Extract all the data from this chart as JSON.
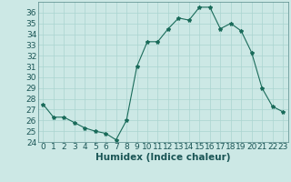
{
  "x": [
    0,
    1,
    2,
    3,
    4,
    5,
    6,
    7,
    8,
    9,
    10,
    11,
    12,
    13,
    14,
    15,
    16,
    17,
    18,
    19,
    20,
    21,
    22,
    23
  ],
  "y": [
    27.5,
    26.3,
    26.3,
    25.8,
    25.3,
    25.0,
    24.8,
    24.2,
    26.0,
    31.0,
    33.3,
    33.3,
    34.5,
    35.5,
    35.3,
    36.5,
    36.5,
    34.5,
    35.0,
    34.3,
    32.3,
    29.0,
    27.3,
    26.8
  ],
  "line_color": "#1a6b5a",
  "marker": "*",
  "marker_size": 3,
  "bg_color": "#cce8e5",
  "grid_color": "#aad4d0",
  "spine_color": "#558888",
  "tick_color": "#1a5555",
  "xlabel": "Humidex (Indice chaleur)",
  "ylim": [
    24,
    37
  ],
  "xlim": [
    -0.5,
    23.5
  ],
  "yticks": [
    24,
    25,
    26,
    27,
    28,
    29,
    30,
    31,
    32,
    33,
    34,
    35,
    36
  ],
  "xticks": [
    0,
    1,
    2,
    3,
    4,
    5,
    6,
    7,
    8,
    9,
    10,
    11,
    12,
    13,
    14,
    15,
    16,
    17,
    18,
    19,
    20,
    21,
    22,
    23
  ],
  "xtick_labels": [
    "0",
    "1",
    "2",
    "3",
    "4",
    "5",
    "6",
    "7",
    "8",
    "9",
    "10",
    "11",
    "12",
    "13",
    "14",
    "15",
    "16",
    "17",
    "18",
    "19",
    "20",
    "21",
    "22",
    "23"
  ],
  "font_size": 6.5,
  "label_font_size": 7.5
}
